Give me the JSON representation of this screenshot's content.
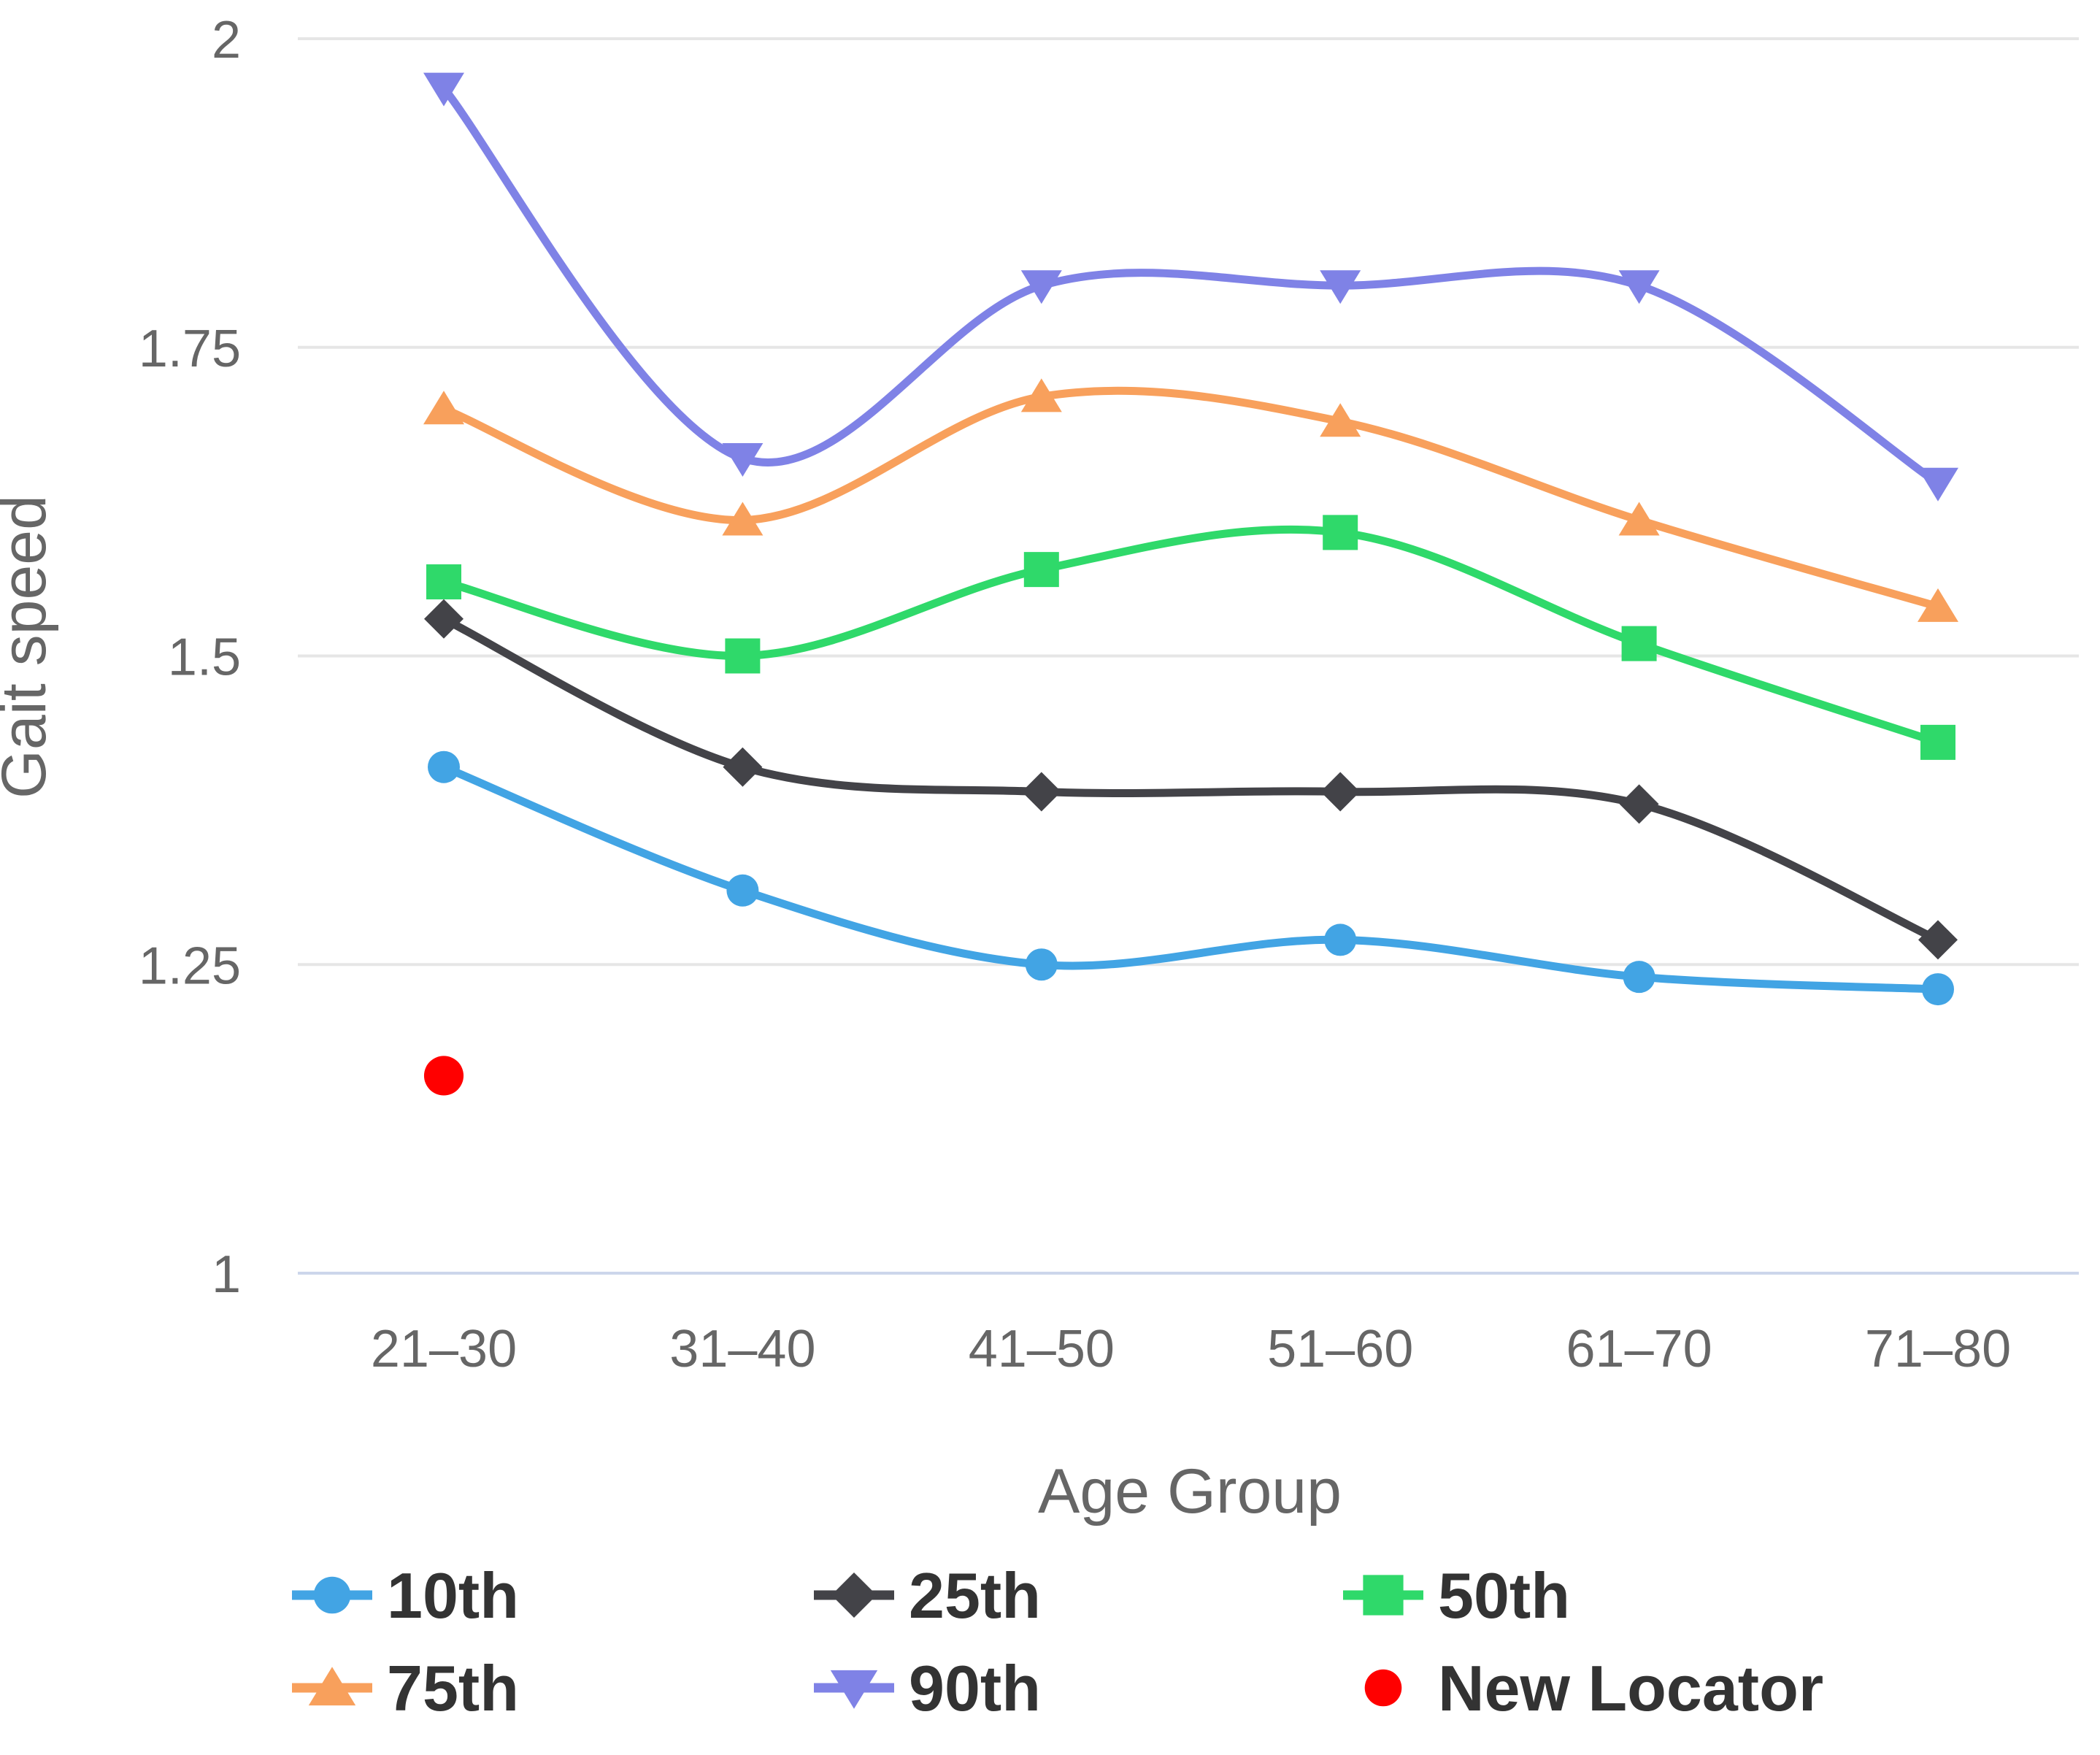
{
  "chart_data": {
    "type": "line",
    "subtype": "spline",
    "title": "",
    "xlabel": "Age Group",
    "ylabel": "Gait speed",
    "categories": [
      "21–30",
      "31–40",
      "41–50",
      "51–60",
      "61–70",
      "71–80"
    ],
    "ylim": [
      1,
      2
    ],
    "yticks": [
      2,
      1.75,
      1.5,
      1.25,
      1
    ],
    "grid": true,
    "legend_position": "bottom",
    "series": [
      {
        "name": "10th",
        "color": "#42a4e4",
        "marker": "circle",
        "values": [
          1.41,
          1.31,
          1.25,
          1.27,
          1.24,
          1.23
        ]
      },
      {
        "name": "25th",
        "color": "#434348",
        "marker": "diamond",
        "values": [
          1.53,
          1.41,
          1.39,
          1.39,
          1.38,
          1.27
        ]
      },
      {
        "name": "50th",
        "color": "#2fd96a",
        "marker": "square",
        "values": [
          1.56,
          1.5,
          1.57,
          1.6,
          1.51,
          1.43
        ]
      },
      {
        "name": "75th",
        "color": "#f8a05c",
        "marker": "triangle-up",
        "values": [
          1.7,
          1.61,
          1.71,
          1.69,
          1.61,
          1.54
        ]
      },
      {
        "name": "90th",
        "color": "#7f82e6",
        "marker": "triangle-down",
        "values": [
          1.96,
          1.66,
          1.8,
          1.8,
          1.8,
          1.64
        ]
      },
      {
        "name": "New Locator",
        "color": "#ff0000",
        "marker": "circle",
        "line": false,
        "values": [
          1.16,
          null,
          null,
          null,
          null,
          null
        ]
      }
    ],
    "colors": {
      "grid": "#e6e6e6",
      "axis_line": "#ccd6eb",
      "tick_label": "#666666",
      "axis_title": "#666666",
      "legend_label": "#333333"
    }
  }
}
